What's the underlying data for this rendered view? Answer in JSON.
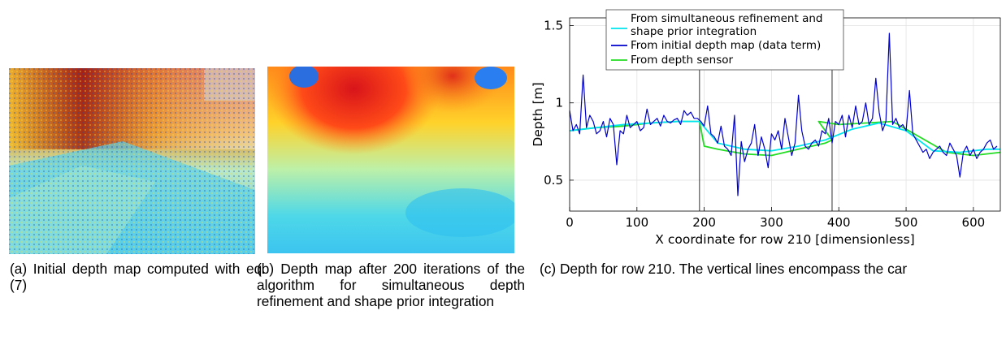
{
  "figures": [
    {
      "caption": "(a) Initial depth map computed with eq. (7)",
      "image_alt": "Initial depth map"
    },
    {
      "caption": "(b) Depth map after 200 iterations of the algorithm for simultaneous depth refinement and shape prior integration",
      "image_alt": "Refined depth map"
    },
    {
      "caption": "(c) Depth for row 210. The vertical lines encompass the car"
    }
  ],
  "chart_data": {
    "type": "line",
    "xlabel": "X coordinate for row 210 [dimensionless]",
    "ylabel": "Depth [m]",
    "xlim": [
      0,
      640
    ],
    "ylim": [
      0.3,
      1.55
    ],
    "xticks": [
      0,
      100,
      200,
      300,
      400,
      500,
      600
    ],
    "yticks": [
      0.5,
      1,
      1.5
    ],
    "ytick_labels": [
      "0.5",
      "1",
      "1.5"
    ],
    "grid": true,
    "legend_position": "top-center",
    "vlines": [
      193,
      390
    ],
    "series": [
      {
        "name": "From simultaneous refinement and shape prior integration",
        "color": "#00e5ee",
        "x": [
          0,
          40,
          80,
          120,
          160,
          193,
          220,
          260,
          300,
          340,
          380,
          420,
          460,
          500,
          540,
          580,
          620,
          640
        ],
        "y": [
          0.82,
          0.84,
          0.86,
          0.87,
          0.88,
          0.88,
          0.74,
          0.7,
          0.69,
          0.72,
          0.76,
          0.83,
          0.87,
          0.82,
          0.69,
          0.68,
          0.7,
          0.7
        ]
      },
      {
        "name": "From initial depth map (data term)",
        "color": "#0000cd",
        "x": [
          0,
          5,
          10,
          15,
          20,
          25,
          30,
          35,
          40,
          45,
          50,
          55,
          60,
          65,
          70,
          75,
          80,
          85,
          90,
          95,
          100,
          105,
          110,
          115,
          120,
          125,
          130,
          135,
          140,
          145,
          150,
          155,
          160,
          165,
          170,
          175,
          180,
          185,
          190,
          195,
          200,
          205,
          210,
          215,
          220,
          225,
          230,
          235,
          240,
          245,
          250,
          255,
          260,
          265,
          270,
          275,
          280,
          285,
          290,
          295,
          300,
          305,
          310,
          315,
          320,
          325,
          330,
          335,
          340,
          345,
          350,
          355,
          360,
          365,
          370,
          375,
          380,
          385,
          390,
          395,
          400,
          405,
          410,
          415,
          420,
          425,
          430,
          435,
          440,
          445,
          450,
          455,
          460,
          465,
          470,
          475,
          480,
          485,
          490,
          495,
          500,
          505,
          510,
          515,
          520,
          525,
          530,
          535,
          540,
          545,
          550,
          555,
          560,
          565,
          570,
          575,
          580,
          585,
          590,
          595,
          600,
          605,
          610,
          615,
          620,
          625,
          630,
          635
        ],
        "y": [
          0.95,
          0.82,
          0.86,
          0.8,
          1.18,
          0.84,
          0.92,
          0.88,
          0.8,
          0.82,
          0.88,
          0.78,
          0.9,
          0.86,
          0.6,
          0.82,
          0.8,
          0.92,
          0.84,
          0.86,
          0.88,
          0.82,
          0.84,
          0.96,
          0.86,
          0.88,
          0.9,
          0.85,
          0.92,
          0.88,
          0.87,
          0.89,
          0.9,
          0.86,
          0.95,
          0.92,
          0.94,
          0.9,
          0.9,
          0.88,
          0.85,
          0.98,
          0.8,
          0.78,
          0.74,
          0.85,
          0.72,
          0.7,
          0.66,
          0.92,
          0.4,
          0.75,
          0.62,
          0.7,
          0.74,
          0.86,
          0.66,
          0.78,
          0.7,
          0.58,
          0.8,
          0.76,
          0.82,
          0.7,
          0.9,
          0.78,
          0.66,
          0.74,
          1.05,
          0.82,
          0.72,
          0.7,
          0.74,
          0.76,
          0.72,
          0.82,
          0.8,
          0.9,
          0.74,
          0.88,
          0.86,
          0.92,
          0.78,
          0.92,
          0.84,
          0.98,
          0.86,
          0.88,
          1.0,
          0.86,
          0.9,
          1.16,
          0.94,
          0.82,
          0.88,
          1.45,
          0.86,
          0.9,
          0.84,
          0.86,
          0.82,
          1.08,
          0.8,
          0.76,
          0.72,
          0.68,
          0.7,
          0.64,
          0.68,
          0.7,
          0.72,
          0.68,
          0.66,
          0.74,
          0.7,
          0.66,
          0.52,
          0.68,
          0.72,
          0.66,
          0.7,
          0.64,
          0.68,
          0.7,
          0.74,
          0.76,
          0.7,
          0.72
        ]
      },
      {
        "name": "From depth sensor",
        "color": "#22dd22",
        "x": [
          0,
          40,
          80,
          120,
          160,
          193,
          200,
          220,
          260,
          300,
          340,
          380,
          390,
          370,
          400,
          440,
          480,
          520,
          560,
          600,
          640
        ],
        "y": [
          0.82,
          0.84,
          0.85,
          0.87,
          0.88,
          0.88,
          0.72,
          0.7,
          0.67,
          0.66,
          0.7,
          0.74,
          0.76,
          0.88,
          0.86,
          0.87,
          0.88,
          0.78,
          0.68,
          0.66,
          0.68
        ]
      }
    ]
  }
}
